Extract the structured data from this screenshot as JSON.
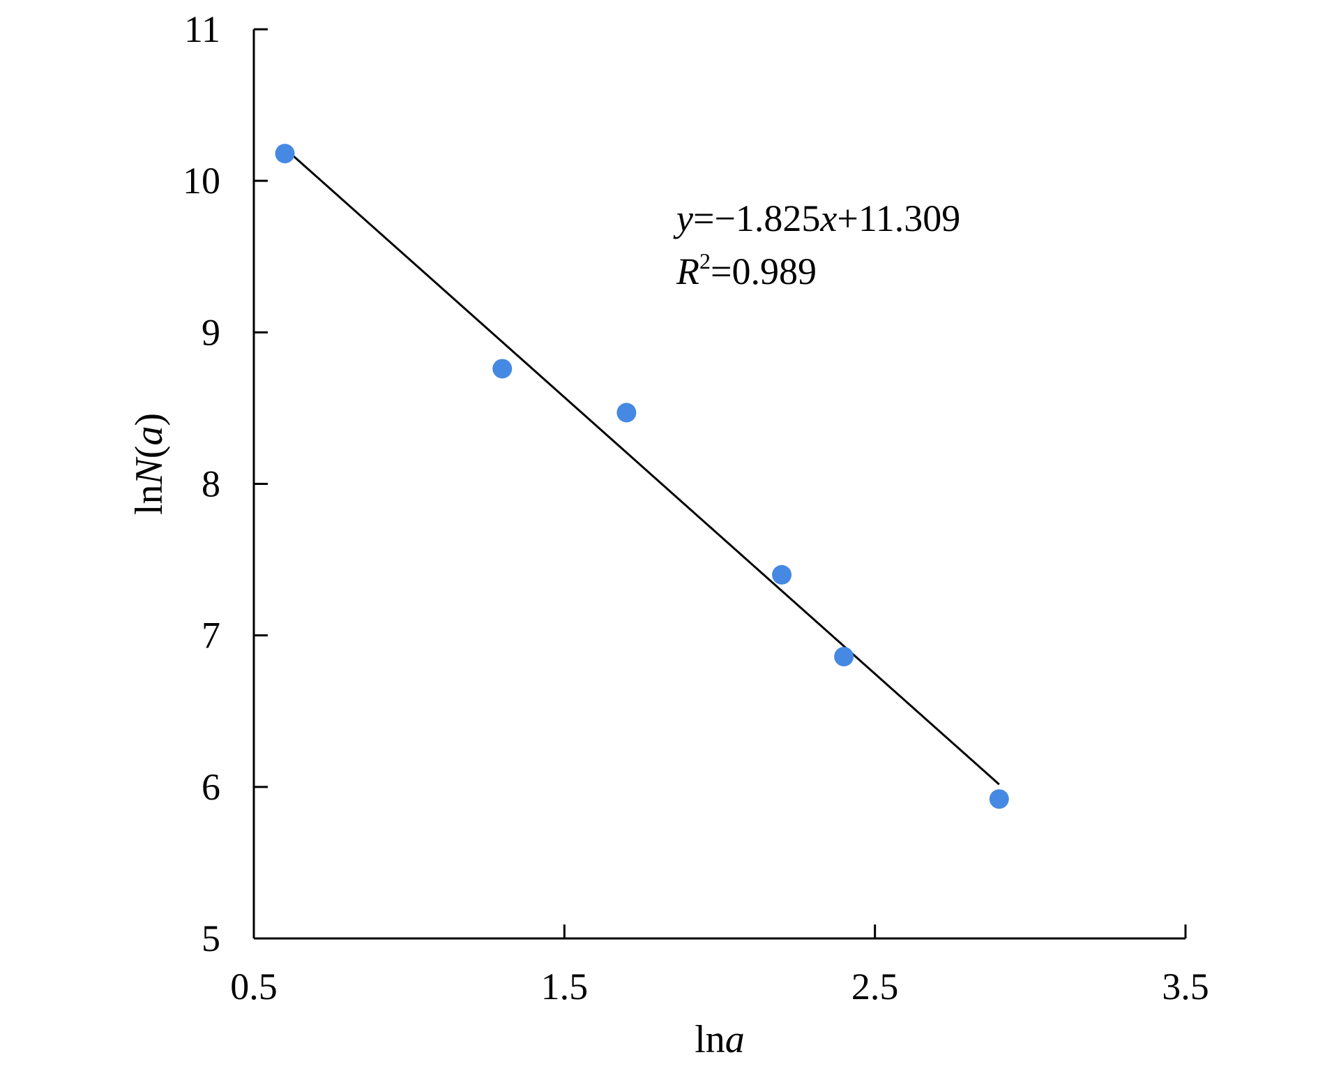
{
  "chart_data": {
    "type": "scatter",
    "xlabel": {
      "prefix": "ln",
      "var": "a"
    },
    "ylabel": {
      "prefix": "ln",
      "var": "N",
      "open": "(",
      "arg": "a",
      "close": ")"
    },
    "xlim": [
      0.5,
      3.5
    ],
    "ylim": [
      5,
      11
    ],
    "x_ticks": [
      0.5,
      1.5,
      2.5,
      3.5
    ],
    "x_tick_labels": [
      "0.5",
      "1.5",
      "2.5",
      "3.5"
    ],
    "y_ticks": [
      5,
      6,
      7,
      8,
      9,
      10,
      11
    ],
    "y_tick_labels": [
      "5",
      "6",
      "7",
      "8",
      "9",
      "10",
      "11"
    ],
    "grid": false,
    "series": [
      {
        "marker_color": "#4589e3",
        "x": [
          0.6,
          1.3,
          1.7,
          2.2,
          2.4,
          2.9
        ],
        "y": [
          10.18,
          8.76,
          8.47,
          7.4,
          6.86,
          5.92
        ]
      }
    ],
    "trendline": {
      "slope": -1.825,
      "intercept": 11.309,
      "x_range": [
        0.6,
        2.9
      ],
      "color": "#000000"
    },
    "annotation": {
      "eq_y": "y",
      "eq_mid": "=−1.825",
      "eq_x": "x",
      "eq_end": "+11.309",
      "r2_r": "R",
      "r2_sup": "2",
      "r2_value": "=0.989"
    }
  }
}
